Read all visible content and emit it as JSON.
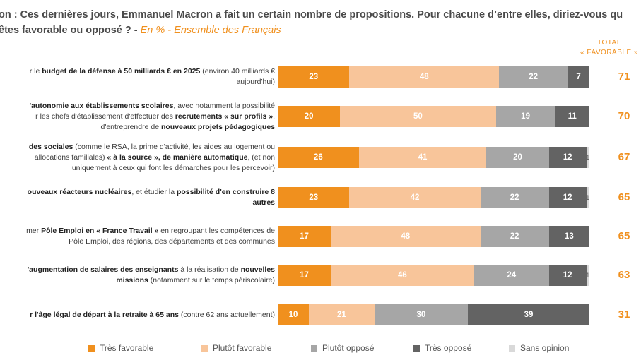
{
  "title": {
    "line1": "on : Ces dernières jours, Emmanuel Macron a fait un certain nombre de propositions. Pour chacune d’entre elles, diriez-vous qu",
    "line2": " êtes favorable ou opposé ? - ",
    "subtitle": "En % - Ensemble des Français"
  },
  "total_header": [
    "TOTAL",
    "« FAVORABLE »"
  ],
  "colors": {
    "tres_favorable": "#f0901e",
    "plutot_favorable": "#f8c59a",
    "plutot_oppose": "#a6a6a6",
    "tres_oppose": "#636363",
    "sans_opinion": "#d9d9d9",
    "total": "#f0901e"
  },
  "chart_data": {
    "type": "bar",
    "orientation": "horizontal",
    "stacked": true,
    "unit": "%",
    "series_names": [
      "Très favorable",
      "Plutôt favorable",
      "Plutôt opposé",
      "Très opposé",
      "Sans opinion"
    ],
    "rows": [
      {
        "label": [
          [
            {
              "t": "r le ",
              "b": false
            },
            {
              "t": "budget de la défense à 50 milliards € en 2025",
              "b": true
            },
            {
              "t": " (environ 40 milliards €",
              "b": false
            }
          ],
          [
            {
              "t": "aujourd'hui)",
              "b": false
            }
          ]
        ],
        "values": [
          23,
          48,
          22,
          7,
          0
        ],
        "value_labels": [
          "23",
          "48",
          "22",
          "7",
          ""
        ],
        "total": "71"
      },
      {
        "label": [
          [
            {
              "t": "'autonomie aux établissements scolaires",
              "b": true
            },
            {
              "t": ", avec notamment la possibilité",
              "b": false
            }
          ],
          [
            {
              "t": "r les chefs d'établissement d'effectuer des ",
              "b": false
            },
            {
              "t": "recrutements « sur profils »",
              "b": true
            },
            {
              "t": ",",
              "b": false
            }
          ],
          [
            {
              "t": "d'entreprendre de ",
              "b": false
            },
            {
              "t": "nouveaux projets pédagogiques",
              "b": true
            }
          ]
        ],
        "values": [
          20,
          50,
          19,
          11,
          0
        ],
        "value_labels": [
          "20",
          "50",
          "19",
          "11",
          ""
        ],
        "total": "70"
      },
      {
        "label": [
          [
            {
              "t": "des sociales",
              "b": true
            },
            {
              "t": " (comme le RSA, la prime d'activité, les aides au logement ou",
              "b": false
            }
          ],
          [
            {
              "t": "allocations familiales) ",
              "b": false
            },
            {
              "t": "« à la source », de manière automatique",
              "b": true
            },
            {
              "t": ", (et non",
              "b": false
            }
          ],
          [
            {
              "t": "uniquement à ceux qui font les démarches pour les percevoir)",
              "b": false
            }
          ]
        ],
        "values": [
          26,
          41,
          20,
          12,
          1
        ],
        "value_labels": [
          "26",
          "41",
          "20",
          "12",
          "1"
        ],
        "total": "67"
      },
      {
        "label": [
          [
            {
              "t": "ouveaux réacteurs nucléaires",
              "b": true
            },
            {
              "t": ", et étudier la ",
              "b": false
            },
            {
              "t": "possibilité d'en construire 8",
              "b": true
            }
          ],
          [
            {
              "t": "autres",
              "b": true
            }
          ]
        ],
        "values": [
          23,
          42,
          22,
          12,
          1
        ],
        "value_labels": [
          "23",
          "42",
          "22",
          "12",
          "1"
        ],
        "total": "65"
      },
      {
        "label": [
          [
            {
              "t": "mer ",
              "b": false
            },
            {
              "t": "Pôle Emploi en « France Travail »",
              "b": true
            },
            {
              "t": " en regroupant les compétences de",
              "b": false
            }
          ],
          [
            {
              "t": "Pôle Emploi, des régions, des départements et des communes",
              "b": false
            }
          ]
        ],
        "values": [
          17,
          48,
          22,
          13,
          0
        ],
        "value_labels": [
          "17",
          "48",
          "22",
          "13",
          ""
        ],
        "total": "65"
      },
      {
        "label": [
          [
            {
              "t": "'augmentation de salaires des enseignants",
              "b": true
            },
            {
              "t": " à la réalisation de ",
              "b": false
            },
            {
              "t": "nouvelles",
              "b": true
            }
          ],
          [
            {
              "t": "missions",
              "b": true
            },
            {
              "t": " (notamment sur le temps périscolaire)",
              "b": false
            }
          ]
        ],
        "values": [
          17,
          46,
          24,
          12,
          1
        ],
        "value_labels": [
          "17",
          "46",
          "24",
          "12",
          "1"
        ],
        "total": "63"
      },
      {
        "label": [
          [
            {
              "t": "r l'âge légal de départ à la retraite à 65 ans",
              "b": true
            },
            {
              "t": " (contre 62 ans actuellement)",
              "b": false
            }
          ]
        ],
        "values": [
          10,
          21,
          30,
          39,
          0
        ],
        "value_labels": [
          "10",
          "21",
          "30",
          "39",
          ""
        ],
        "total": "31"
      }
    ],
    "legend": [
      "Très favorable",
      "Plutôt favorable",
      "Plutôt opposé",
      "Très opposé",
      "Sans opinion"
    ],
    "xlim": [
      0,
      100
    ],
    "grid": false,
    "legend_position": "bottom"
  }
}
